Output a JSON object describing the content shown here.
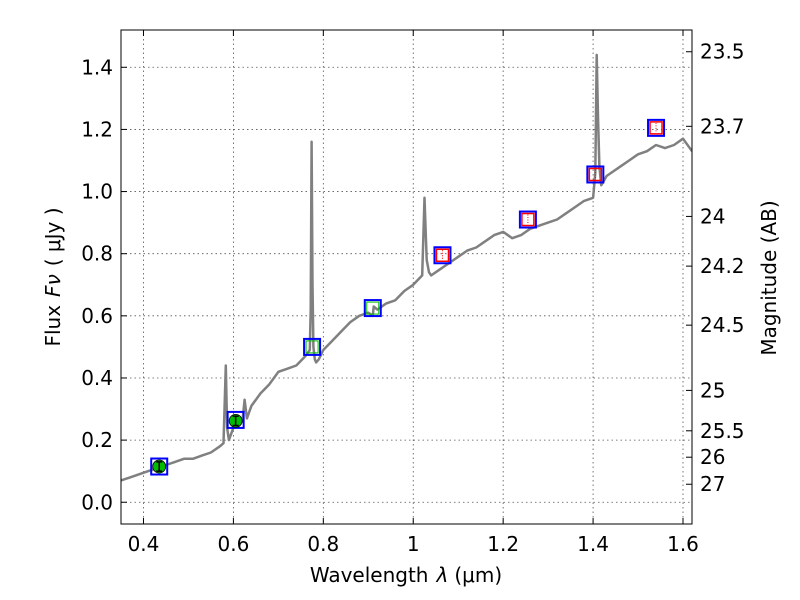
{
  "chart_data": {
    "type": "line",
    "xlabel": "Wavelength",
    "xlabel_symbol": "λ",
    "xlabel_unit": "(μm)",
    "ylabel": "Flux",
    "ylabel_symbol": "Fν",
    "ylabel_unit": "( μJy )",
    "y2label": "Magnitude (AB)",
    "xlim": [
      0.35,
      1.62
    ],
    "ylim": [
      -0.07,
      1.52
    ],
    "xticks": [
      0.4,
      0.6,
      0.8,
      1.0,
      1.2,
      1.4,
      1.6
    ],
    "xtick_labels": [
      "0.4",
      "0.6",
      "0.8",
      "1",
      "1.2",
      "1.4",
      "1.6"
    ],
    "yticks": [
      0.0,
      0.2,
      0.4,
      0.6,
      0.8,
      1.0,
      1.2,
      1.4
    ],
    "ytick_labels": [
      "0.0",
      "0.2",
      "0.4",
      "0.6",
      "0.8",
      "1.0",
      "1.2",
      "1.4"
    ],
    "y2ticks": [
      {
        "flux": 1.45,
        "label": "23.5"
      },
      {
        "flux": 1.21,
        "label": "23.7"
      },
      {
        "flux": 0.92,
        "label": "24"
      },
      {
        "flux": 0.76,
        "label": "24.2"
      },
      {
        "flux": 0.57,
        "label": "24.5"
      },
      {
        "flux": 0.36,
        "label": "25"
      },
      {
        "flux": 0.23,
        "label": "25.5"
      },
      {
        "flux": 0.145,
        "label": "26"
      },
      {
        "flux": 0.058,
        "label": "27"
      }
    ],
    "grid": true,
    "colors": {
      "spectrum": "#808080",
      "model_box": "#0000ff",
      "observed": "#00bb00",
      "upper_limit": "#ff0000"
    },
    "series": [
      {
        "kind": "spectrum",
        "x": [
          0.35,
          0.37,
          0.39,
          0.41,
          0.43,
          0.45,
          0.47,
          0.49,
          0.51,
          0.53,
          0.55,
          0.57,
          0.578,
          0.583,
          0.586,
          0.59,
          0.6,
          0.62,
          0.625,
          0.63,
          0.64,
          0.66,
          0.68,
          0.7,
          0.72,
          0.74,
          0.76,
          0.77,
          0.772,
          0.774,
          0.776,
          0.778,
          0.781,
          0.784,
          0.79,
          0.8,
          0.82,
          0.84,
          0.86,
          0.88,
          0.9,
          0.91,
          0.912,
          0.92,
          0.94,
          0.96,
          0.98,
          1.0,
          1.02,
          1.025,
          1.03,
          1.035,
          1.04,
          1.06,
          1.08,
          1.1,
          1.12,
          1.14,
          1.16,
          1.18,
          1.2,
          1.22,
          1.24,
          1.26,
          1.28,
          1.3,
          1.32,
          1.34,
          1.36,
          1.38,
          1.4,
          1.405,
          1.408,
          1.411,
          1.414,
          1.418,
          1.422,
          1.43,
          1.44,
          1.46,
          1.48,
          1.5,
          1.52,
          1.54,
          1.56,
          1.58,
          1.6,
          1.62
        ],
        "y": [
          0.07,
          0.08,
          0.09,
          0.1,
          0.11,
          0.12,
          0.13,
          0.14,
          0.14,
          0.15,
          0.16,
          0.18,
          0.19,
          0.44,
          0.24,
          0.2,
          0.24,
          0.26,
          0.33,
          0.27,
          0.31,
          0.35,
          0.38,
          0.42,
          0.43,
          0.44,
          0.47,
          0.49,
          0.62,
          1.16,
          0.7,
          0.5,
          0.46,
          0.45,
          0.46,
          0.49,
          0.52,
          0.55,
          0.58,
          0.6,
          0.61,
          0.6,
          0.63,
          0.62,
          0.64,
          0.65,
          0.68,
          0.7,
          0.73,
          0.98,
          0.78,
          0.74,
          0.73,
          0.75,
          0.77,
          0.79,
          0.81,
          0.82,
          0.84,
          0.86,
          0.87,
          0.85,
          0.86,
          0.88,
          0.89,
          0.9,
          0.91,
          0.93,
          0.95,
          0.97,
          0.98,
          1.06,
          1.44,
          1.24,
          1.08,
          1.02,
          1.03,
          1.05,
          1.06,
          1.08,
          1.1,
          1.12,
          1.13,
          1.15,
          1.14,
          1.15,
          1.17,
          1.13
        ]
      },
      {
        "kind": "model_points",
        "x": [
          0.435,
          0.605,
          0.775,
          0.91,
          1.065,
          1.255,
          1.405,
          1.54
        ],
        "y": [
          0.115,
          0.265,
          0.5,
          0.625,
          0.795,
          0.91,
          1.055,
          1.205
        ]
      },
      {
        "kind": "observed_detections",
        "x": [
          0.435,
          0.605
        ],
        "y": [
          0.115,
          0.262
        ],
        "yerr": [
          0.015,
          0.015
        ]
      },
      {
        "kind": "upper_limits",
        "x": [
          1.065,
          1.255,
          1.405,
          1.54
        ],
        "y": [
          0.795,
          0.91,
          1.055,
          1.205
        ]
      },
      {
        "kind": "nondetections",
        "x": [
          0.775,
          0.91
        ],
        "y": [
          0.5,
          0.625
        ]
      }
    ]
  }
}
